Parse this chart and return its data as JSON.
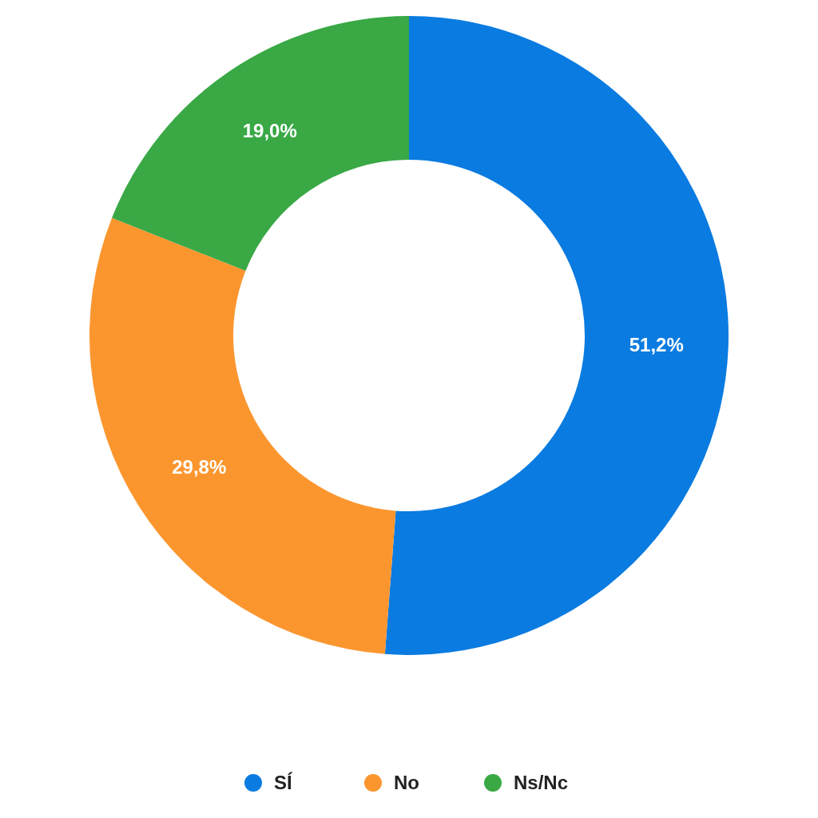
{
  "chart_data": {
    "type": "donut",
    "categories": [
      "SÍ",
      "No",
      "Ns/Nc"
    ],
    "values": [
      51.2,
      29.8,
      19.0
    ],
    "colors": [
      "#0a7be0",
      "#fb962f",
      "#39a845"
    ],
    "value_labels": [
      "51,2%",
      "29,8%",
      "19,0%"
    ],
    "legend": "bottom"
  }
}
